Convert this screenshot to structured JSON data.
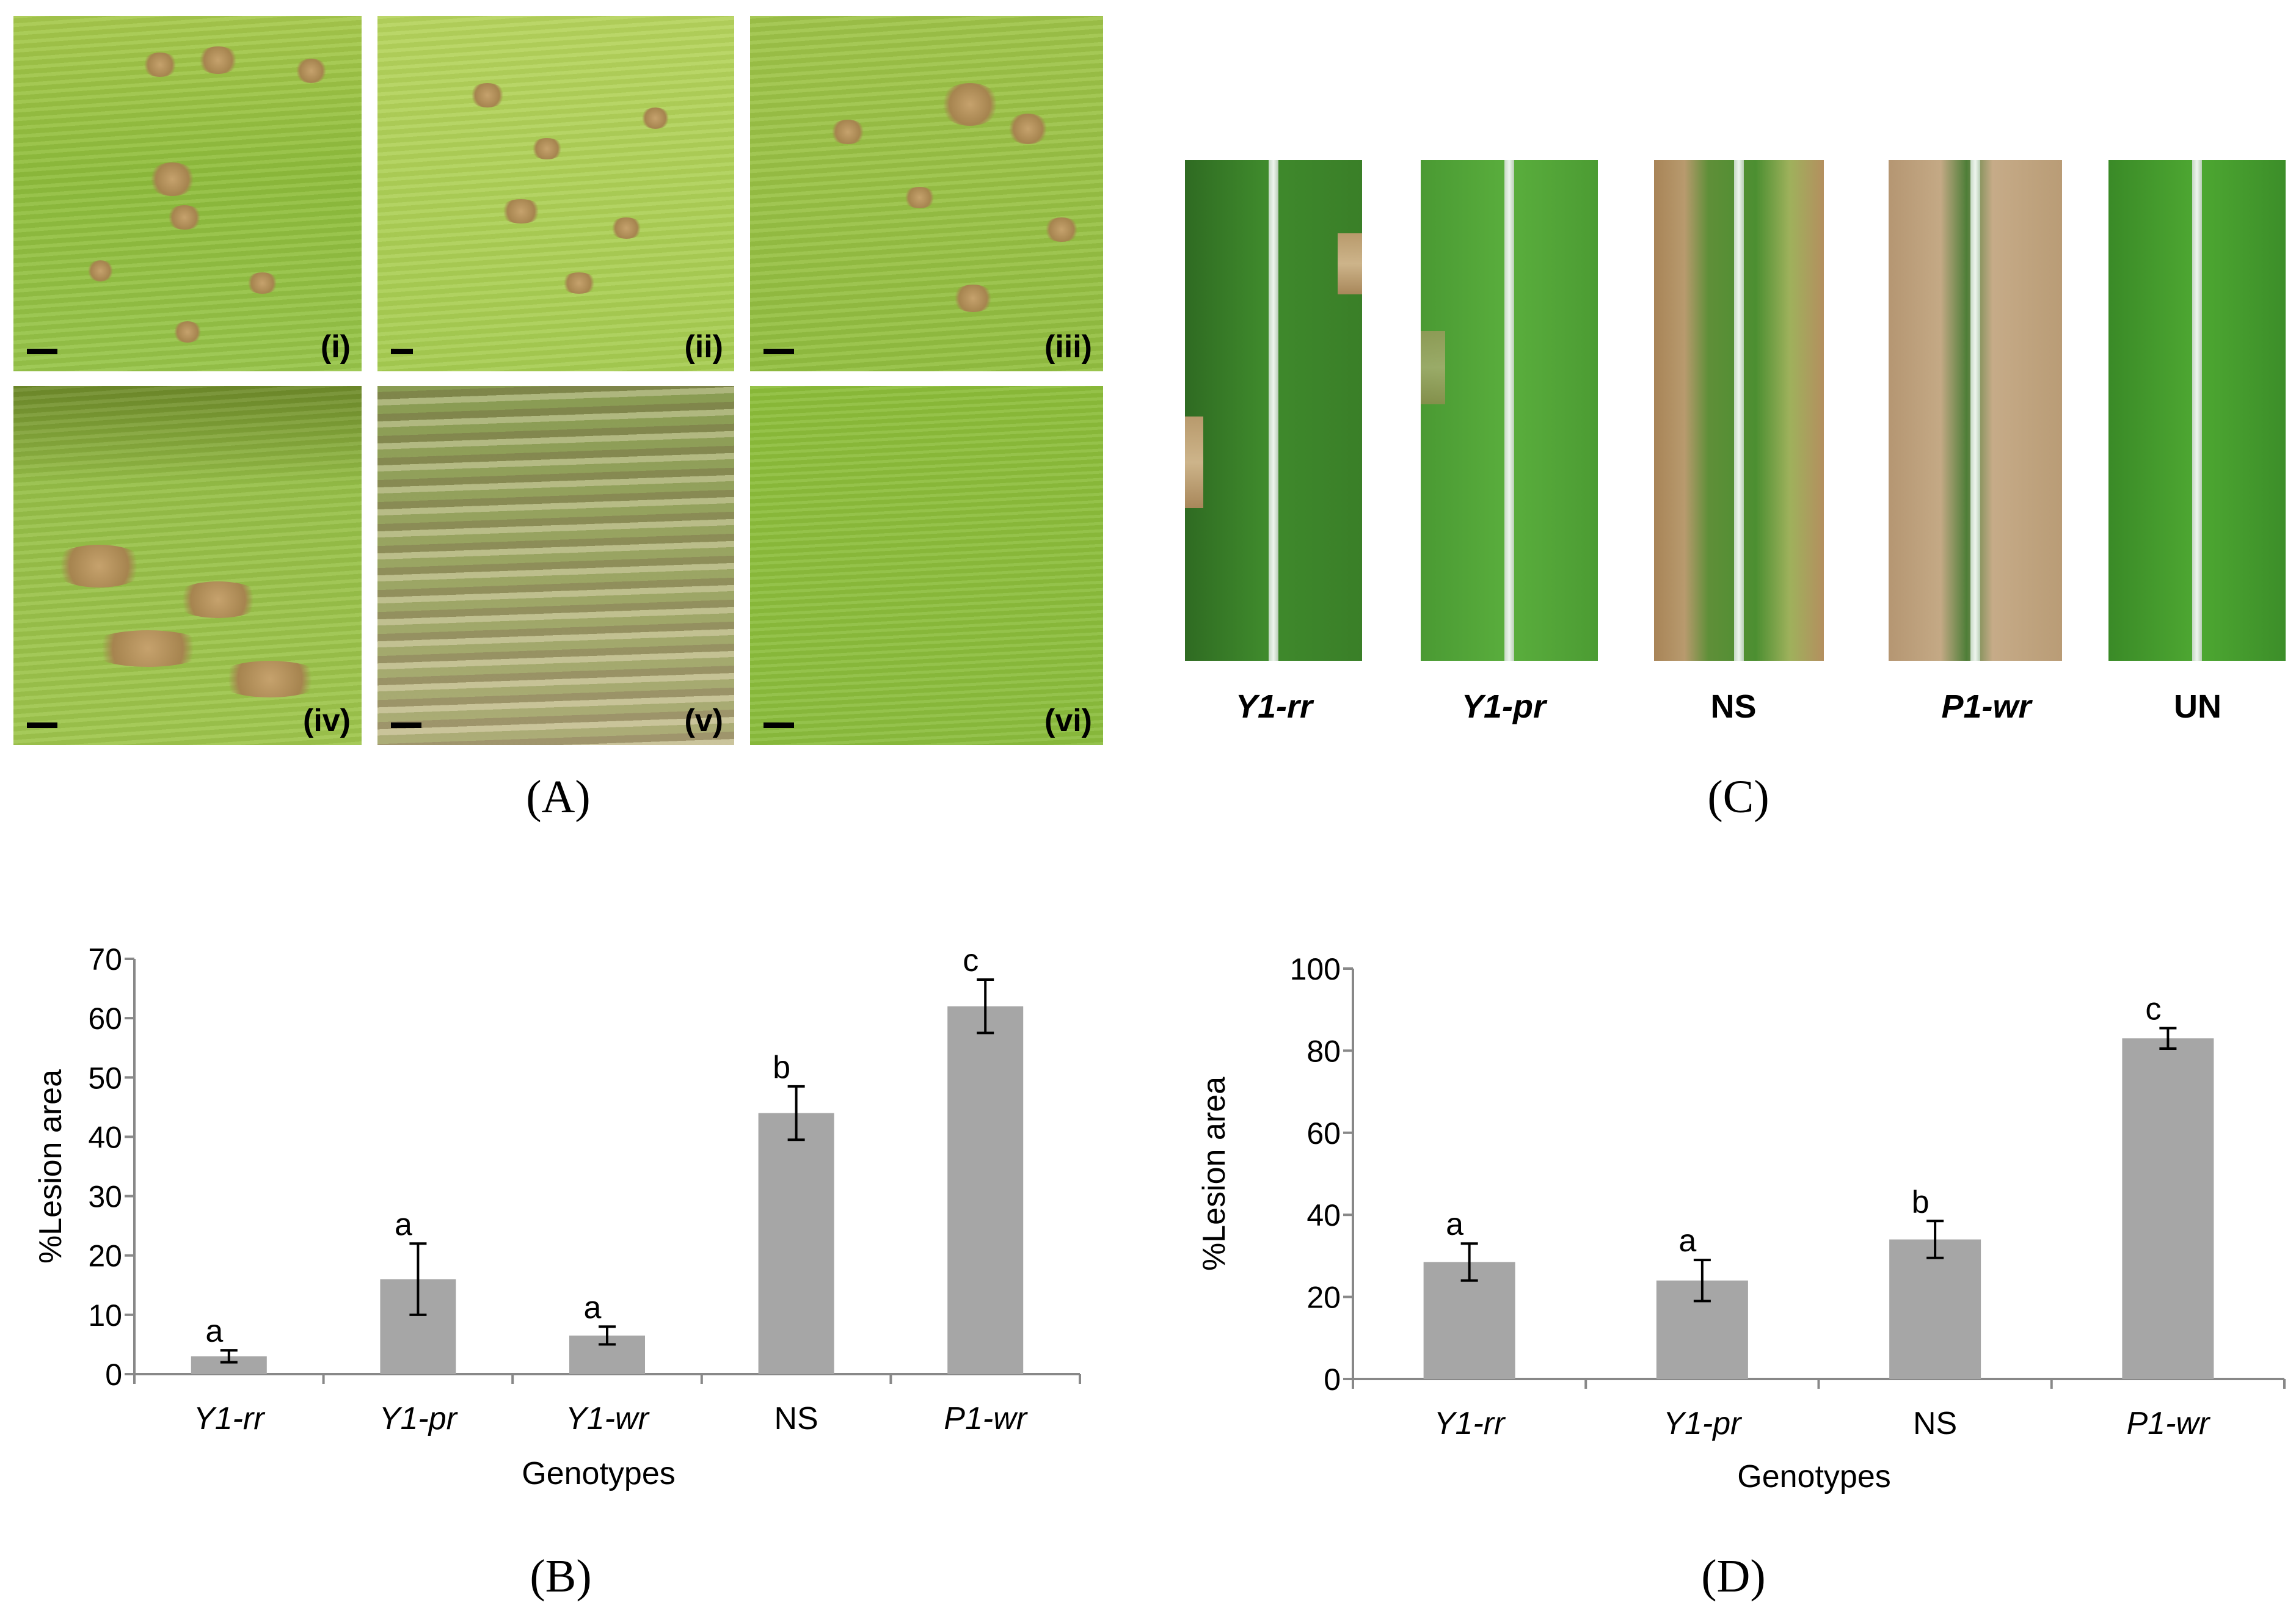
{
  "panel_labels": {
    "a": "(A)",
    "b": "(B)",
    "c": "(C)",
    "d": "(D)"
  },
  "panel_a": {
    "photos": [
      {
        "tag": "(i)"
      },
      {
        "tag": "(ii)"
      },
      {
        "tag": "(iii)"
      },
      {
        "tag": "(iv)"
      },
      {
        "tag": "(v)"
      },
      {
        "tag": "(vi)"
      }
    ]
  },
  "panel_c": {
    "strips": [
      {
        "label": "Y1-rr",
        "italic": true
      },
      {
        "label": "Y1-pr",
        "italic": true
      },
      {
        "label": "NS",
        "italic": false
      },
      {
        "label": "P1-wr",
        "italic": true
      },
      {
        "label": "UN",
        "italic": false
      }
    ]
  },
  "chart_data": [
    {
      "panel": "B",
      "type": "bar",
      "categories": [
        "Y1-rr",
        "Y1-pr",
        "Y1-wr",
        "NS",
        "P1-wr"
      ],
      "italic_categories": [
        true,
        true,
        true,
        false,
        true
      ],
      "values": [
        3,
        16,
        6.5,
        44,
        62
      ],
      "errors": [
        1,
        6,
        1.5,
        4.5,
        4.5
      ],
      "significance": [
        "a",
        "a",
        "a",
        "b",
        "c"
      ],
      "xlabel": "Genotypes",
      "ylabel": "%Lesion area",
      "ylim": [
        0,
        70
      ],
      "yticks": [
        0,
        10,
        20,
        30,
        40,
        50,
        60,
        70
      ],
      "bar_color": "#a6a6a6",
      "grid": false,
      "legend": "none"
    },
    {
      "panel": "D",
      "type": "bar",
      "categories": [
        "Y1-rr",
        "Y1-pr",
        "NS",
        "P1-wr"
      ],
      "italic_categories": [
        true,
        true,
        false,
        true
      ],
      "values": [
        28.5,
        24,
        34,
        83
      ],
      "errors": [
        4.5,
        5,
        4.5,
        2.5
      ],
      "significance": [
        "a",
        "a",
        "b",
        "c"
      ],
      "xlabel": "Genotypes",
      "ylabel": "%Lesion area",
      "ylim": [
        0,
        100
      ],
      "yticks": [
        0,
        20,
        40,
        60,
        80,
        100
      ],
      "bar_color": "#a6a6a6",
      "grid": false,
      "legend": "none"
    }
  ]
}
